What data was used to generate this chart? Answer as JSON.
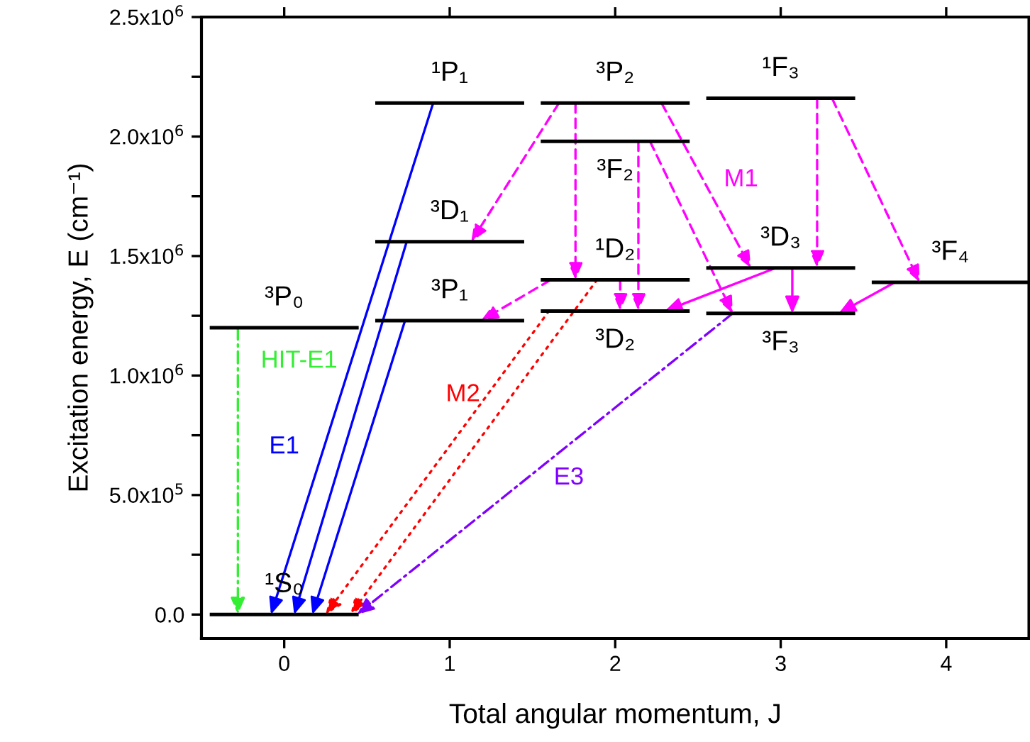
{
  "chart_data": {
    "type": "line",
    "xlabel": "Total angular momentum, J",
    "ylabel": "Excitation energy, E (cm⁻¹)",
    "xlim": [
      -0.5,
      4.5
    ],
    "ylim": [
      -100000,
      2500000
    ],
    "xticks": [
      0,
      1,
      2,
      3,
      4
    ],
    "yticks": [
      {
        "value": 0,
        "label": "0.0"
      },
      {
        "value": 250000,
        "label": null
      },
      {
        "value": 500000,
        "label": "5.0x10$^{5}$"
      },
      {
        "value": 750000,
        "label": null
      },
      {
        "value": 1000000,
        "label": "1.0x10$^{6}$"
      },
      {
        "value": 1250000,
        "label": null
      },
      {
        "value": 1500000,
        "label": "1.5x10$^{6}$"
      },
      {
        "value": 1750000,
        "label": null
      },
      {
        "value": 2000000,
        "label": "2.0x10$^{6}$"
      },
      {
        "value": 2250000,
        "label": null
      },
      {
        "value": 2500000,
        "label": "2.5x10$^{6}$"
      }
    ],
    "grid": false,
    "series": [
      {
        "name": "¹S₀",
        "color": "#000000",
        "x": [
          -0.45,
          0.45
        ],
        "values": [
          0,
          0
        ]
      },
      {
        "name": "³P₀",
        "color": "#000000",
        "x": [
          -0.45,
          0.45
        ],
        "values": [
          1200000,
          1200000
        ]
      },
      {
        "name": "¹P₁",
        "color": "#000000",
        "x": [
          0.55,
          1.45
        ],
        "values": [
          2140000,
          2140000
        ]
      },
      {
        "name": "³D₁",
        "color": "#000000",
        "x": [
          0.55,
          1.45
        ],
        "values": [
          1560000,
          1560000
        ]
      },
      {
        "name": "³P₁",
        "color": "#000000",
        "x": [
          0.55,
          1.45
        ],
        "values": [
          1230000,
          1230000
        ]
      },
      {
        "name": "³P₂",
        "color": "#000000",
        "x": [
          1.55,
          2.45
        ],
        "values": [
          2140000,
          2140000
        ]
      },
      {
        "name": "³F₂",
        "color": "#000000",
        "x": [
          1.55,
          2.45
        ],
        "values": [
          1980000,
          1980000
        ]
      },
      {
        "name": "¹D₂",
        "color": "#000000",
        "x": [
          1.55,
          2.45
        ],
        "values": [
          1400000,
          1400000
        ]
      },
      {
        "name": "³D₂",
        "color": "#000000",
        "x": [
          1.55,
          2.45
        ],
        "values": [
          1270000,
          1270000
        ]
      },
      {
        "name": "¹F₃",
        "color": "#000000",
        "x": [
          2.55,
          3.45
        ],
        "values": [
          2160000,
          2160000
        ]
      },
      {
        "name": "³D₃",
        "color": "#000000",
        "x": [
          2.55,
          3.45
        ],
        "values": [
          1450000,
          1450000
        ]
      },
      {
        "name": "³F₃",
        "color": "#000000",
        "x": [
          2.55,
          3.45
        ],
        "values": [
          1260000,
          1260000
        ]
      },
      {
        "name": "³F₄",
        "color": "#000000",
        "x": [
          3.55,
          4.5
        ],
        "values": [
          1390000,
          1390000
        ]
      }
    ],
    "annotations": [
      "HIT-E1",
      "E1",
      "M2",
      "E3",
      "M1"
    ]
  }
}
